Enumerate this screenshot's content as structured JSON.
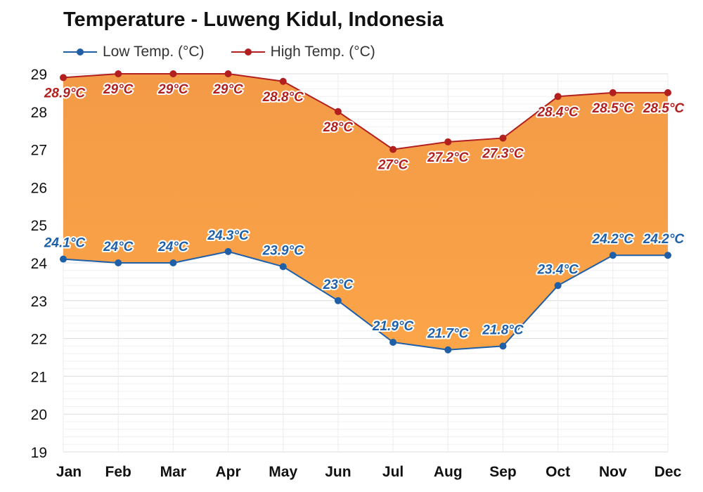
{
  "colors": {
    "low": "#1f5fa8",
    "high": "#b21f1f",
    "fill_top": "#f39a47",
    "fill_bottom": "#fba448",
    "grid": "#e3e3e3"
  },
  "chart_data": {
    "type": "area",
    "title": "Temperature - Luweng Kidul, Indonesia",
    "categories": [
      "Jan",
      "Feb",
      "Mar",
      "Apr",
      "May",
      "Jun",
      "Jul",
      "Aug",
      "Sep",
      "Oct",
      "Nov",
      "Dec"
    ],
    "series": [
      {
        "name": "Low Temp. (°C)",
        "values": [
          24.1,
          24.0,
          24.0,
          24.3,
          23.9,
          23.0,
          21.9,
          21.7,
          21.8,
          23.4,
          24.2,
          24.2
        ],
        "labels": [
          "24.1°C",
          "24°C",
          "24°C",
          "24.3°C",
          "23.9°C",
          "23°C",
          "21.9°C",
          "21.7°C",
          "21.8°C",
          "23.4°C",
          "24.2°C",
          "24.2°C"
        ]
      },
      {
        "name": "High Temp. (°C)",
        "values": [
          28.9,
          29.0,
          29.0,
          29.0,
          28.8,
          28.0,
          27.0,
          27.2,
          27.3,
          28.4,
          28.5,
          28.5
        ],
        "labels": [
          "28.9°C",
          "29°C",
          "29°C",
          "29°C",
          "28.8°C",
          "28°C",
          "27°C",
          "27.2°C",
          "27.3°C",
          "28.4°C",
          "28.5°C",
          "28.5°C"
        ]
      }
    ],
    "ylim": [
      19,
      29
    ],
    "yticks": [
      "19",
      "20",
      "21",
      "22",
      "23",
      "24",
      "25",
      "26",
      "27",
      "28",
      "29"
    ],
    "grid": true,
    "legend_position": "top-left"
  }
}
